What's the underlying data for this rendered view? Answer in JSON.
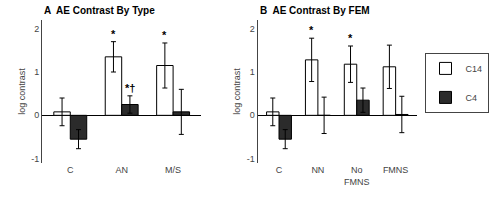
{
  "chart_data": [
    {
      "type": "bar",
      "title": "A  AE Contrast By Type",
      "categories": [
        "C",
        "AN",
        "M/S"
      ],
      "series": [
        {
          "name": "C14",
          "color": "#ffffff",
          "values": [
            0.08,
            1.35,
            1.15
          ],
          "errors": [
            0.32,
            0.35,
            0.52
          ]
        },
        {
          "name": "C4",
          "color": "#2b2b2b",
          "values": [
            -0.55,
            0.25,
            0.08
          ],
          "errors": [
            0.22,
            0.2,
            0.52
          ]
        }
      ],
      "annotations": [
        {
          "category": "AN",
          "series": "C14",
          "text": "*"
        },
        {
          "category": "M/S",
          "series": "C14",
          "text": "*"
        },
        {
          "category": "AN",
          "series": "C4",
          "text": "*†"
        }
      ],
      "ylabel": "log contrast",
      "ylim": [
        -1.1,
        2.2
      ],
      "yticks": [
        -1,
        0,
        1,
        2
      ],
      "grid": false,
      "legend": "right"
    },
    {
      "type": "bar",
      "title": "B  AE Contrast By FEM",
      "categories": [
        "C",
        "NN",
        "No\nFMNS",
        "FMNS"
      ],
      "series": [
        {
          "name": "C14",
          "color": "#ffffff",
          "values": [
            0.08,
            1.28,
            1.18,
            1.12
          ],
          "errors": [
            0.32,
            0.5,
            0.42,
            0.5
          ]
        },
        {
          "name": "C4",
          "color": "#2b2b2b",
          "values": [
            -0.55,
            0.0,
            0.35,
            0.02
          ],
          "errors": [
            0.22,
            0.42,
            0.28,
            0.42
          ]
        }
      ],
      "annotations": [
        {
          "category": "NN",
          "series": "C14",
          "text": "*"
        },
        {
          "category": "No\nFMNS",
          "series": "C14",
          "text": "*"
        }
      ],
      "ylabel": "log contrast",
      "ylim": [
        -1.1,
        2.2
      ],
      "yticks": [
        -1,
        0,
        1,
        2
      ],
      "grid": false,
      "legend": "right"
    }
  ]
}
